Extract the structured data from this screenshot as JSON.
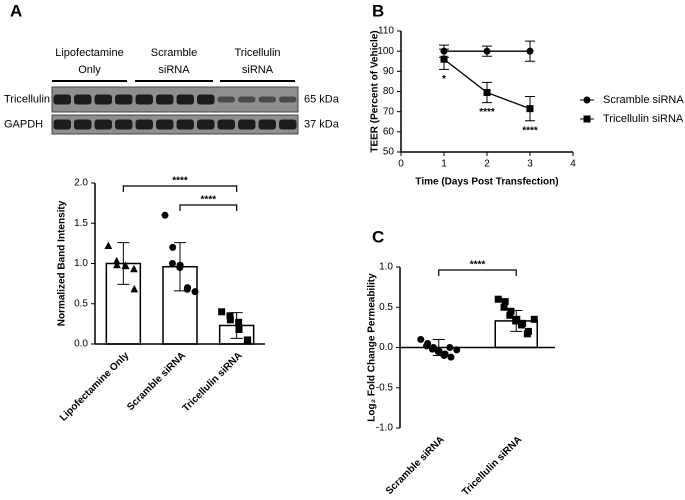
{
  "blot": {
    "lanes": [
      [
        "Lipofectamine",
        "Only"
      ],
      [
        "Scramble",
        "siRNA"
      ],
      [
        "Tricellulin",
        "siRNA"
      ]
    ],
    "rows": [
      {
        "name": "Tricellulin",
        "size": "65 kDa"
      },
      {
        "name": "GAPDH",
        "size": "37 kDa"
      }
    ]
  },
  "chart_data": [
    {
      "type": "bar",
      "panel_label": "A",
      "y_label": "Normalized Band Intensity",
      "categories": [
        "Lipofectamine Only",
        "Scramble siRNA",
        "Tricellulin siRNA"
      ],
      "values": [
        1.0,
        0.96,
        0.23
      ],
      "errors": [
        0.26,
        0.3,
        0.16
      ],
      "markers": [
        "triangle",
        "circle",
        "square"
      ],
      "color": "#000000",
      "points": [
        [
          1.22,
          1.03,
          0.98,
          0.97,
          0.97,
          0.93,
          0.68
        ],
        [
          1.6,
          1.2,
          1.0,
          0.98,
          0.95,
          0.7,
          0.68,
          0.65
        ],
        [
          0.4,
          0.35,
          0.3,
          0.27,
          0.18,
          0.05,
          0.05
        ]
      ],
      "comparisons": [
        {
          "label": "****",
          "between": [
            "Lipofectamine Only",
            "Tricellulin siRNA"
          ]
        },
        {
          "label": "****",
          "between": [
            "Scramble siRNA",
            "Tricellulin siRNA"
          ]
        }
      ],
      "ylim": [
        0,
        2
      ],
      "yticks": [
        {
          "value": 0,
          "label": "0.0"
        },
        {
          "value": 0.5,
          "label": "0.5"
        },
        {
          "value": 1,
          "label": "1.0"
        },
        {
          "value": 1.5,
          "label": "1.5"
        },
        {
          "value": 2,
          "label": "2.0"
        }
      ]
    },
    {
      "type": "line",
      "panel_label": "B",
      "x_label": "Time (Days Post Transfection)",
      "y_label": "TEER (Percent of Vehicle)",
      "x": [
        1,
        2,
        3
      ],
      "xlim": [
        0,
        4
      ],
      "xticks": [
        0,
        1,
        2,
        3,
        4
      ],
      "ylim": [
        50,
        110
      ],
      "yticks": [
        50,
        60,
        70,
        80,
        90,
        100,
        110
      ],
      "legend": "right",
      "series": [
        {
          "name": "Scramble siRNA",
          "color": "#000000",
          "marker": "circle",
          "values": [
            100,
            100,
            100
          ],
          "errors": [
            3,
            2.5,
            5
          ]
        },
        {
          "name": "Tricellulin siRNA",
          "color": "#000000",
          "marker": "square",
          "values": [
            96,
            79.5,
            71.5
          ],
          "errors": [
            5,
            5,
            6
          ],
          "point_labels": [
            "*",
            "****",
            "****"
          ]
        }
      ]
    },
    {
      "type": "bar",
      "panel_label": "C",
      "y_label": "Log₂ Fold Change Permeability",
      "categories": [
        "Scramble siRNA",
        "Tricellulin siRNA"
      ],
      "values": [
        0.0,
        0.33
      ],
      "errors": [
        0.1,
        0.13
      ],
      "markers": [
        "circle",
        "square"
      ],
      "color": "#000000",
      "points": [
        [
          0.1,
          0.05,
          0.02,
          0.0,
          -0.02,
          -0.05,
          -0.05,
          -0.08,
          -0.1,
          -0.12,
          0.0,
          -0.03
        ],
        [
          0.6,
          0.57,
          0.5,
          0.45,
          0.4,
          0.35,
          0.33,
          0.3,
          0.28,
          0.2,
          0.17,
          0.35
        ]
      ],
      "comparisons": [
        {
          "label": "****",
          "between": [
            "Scramble siRNA",
            "Tricellulin siRNA"
          ]
        }
      ],
      "ylim": [
        -1,
        1
      ],
      "yticks": [
        {
          "value": -1,
          "label": "-1.0"
        },
        {
          "value": -0.5,
          "label": "-0.5"
        },
        {
          "value": 0,
          "label": "0.0"
        },
        {
          "value": 0.5,
          "label": "0.5"
        },
        {
          "value": 1,
          "label": "1.0"
        }
      ]
    }
  ]
}
